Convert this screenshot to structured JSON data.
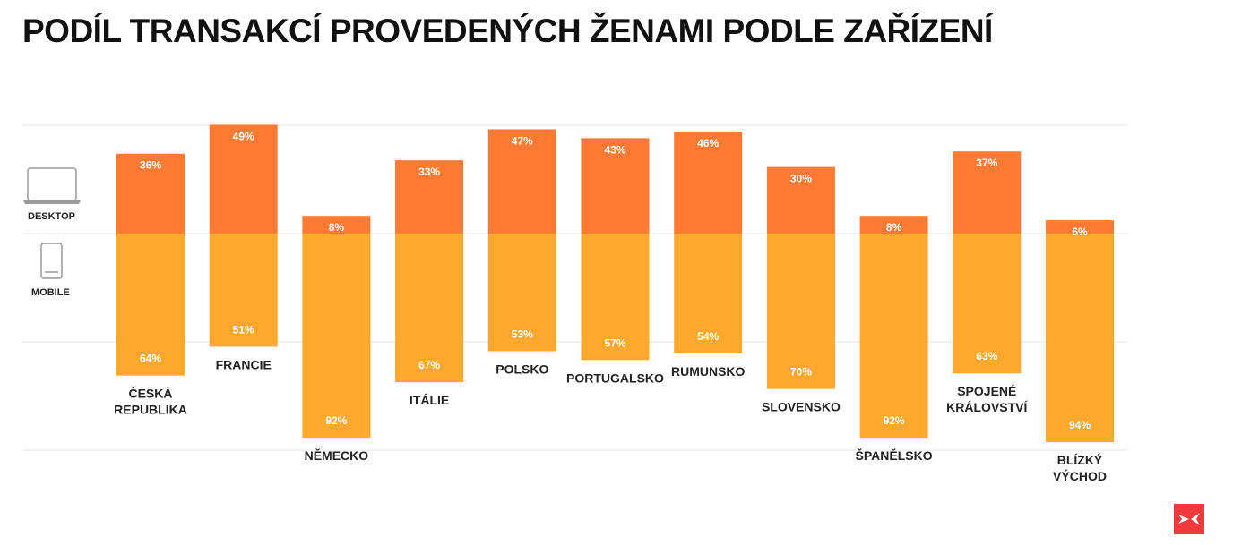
{
  "title": "PODÍL TRANSAKCÍ PROVEDENÝCH ŽENAMI PODLE ZAŘÍZENÍ",
  "legend": {
    "desktop_label": "DESKTOP",
    "mobile_label": "MOBILE",
    "desktop_icon": "laptop-icon",
    "mobile_icon": "smartphone-icon"
  },
  "colors": {
    "desktop": "#FF7B33",
    "mobile": "#FFA82E",
    "grid": "#E5E5E5",
    "logo": "#F0393D"
  },
  "logo": {
    "icon": "brand-logo-icon"
  },
  "chart_data": {
    "type": "bar",
    "stacked": true,
    "categories": [
      [
        "ČESKÁ",
        "REPUBLIKA"
      ],
      [
        "FRANCIE"
      ],
      [
        "NĚMECKO"
      ],
      [
        "ITÁLIE"
      ],
      [
        "POLSKO"
      ],
      [
        "PORTUGALSKO"
      ],
      [
        "RUMUNSKO"
      ],
      [
        "SLOVENSKO"
      ],
      [
        "ŠPANĚLSKO"
      ],
      [
        "SPOJENÉ",
        "KRÁLOVSTVÍ"
      ],
      [
        "BLÍZKÝ",
        "VÝCHOD"
      ]
    ],
    "series": [
      {
        "name": "DESKTOP",
        "values": [
          36,
          49,
          8,
          33,
          47,
          43,
          46,
          30,
          8,
          37,
          6
        ]
      },
      {
        "name": "MOBILE",
        "values": [
          64,
          51,
          92,
          67,
          53,
          57,
          54,
          70,
          92,
          63,
          94
        ]
      }
    ],
    "value_labels": {
      "desktop": [
        "36%",
        "49%",
        "8%",
        "33%",
        "47%",
        "43%",
        "46%",
        "30%",
        "8%",
        "37%",
        "6%"
      ],
      "mobile": [
        "64%",
        "51%",
        "92%",
        "67%",
        "53%",
        "57%",
        "54%",
        "70%",
        "92%",
        "63%",
        "94%"
      ]
    },
    "baseline": "desktop above, mobile below a shared baseline",
    "grid": true,
    "legend": "left"
  }
}
